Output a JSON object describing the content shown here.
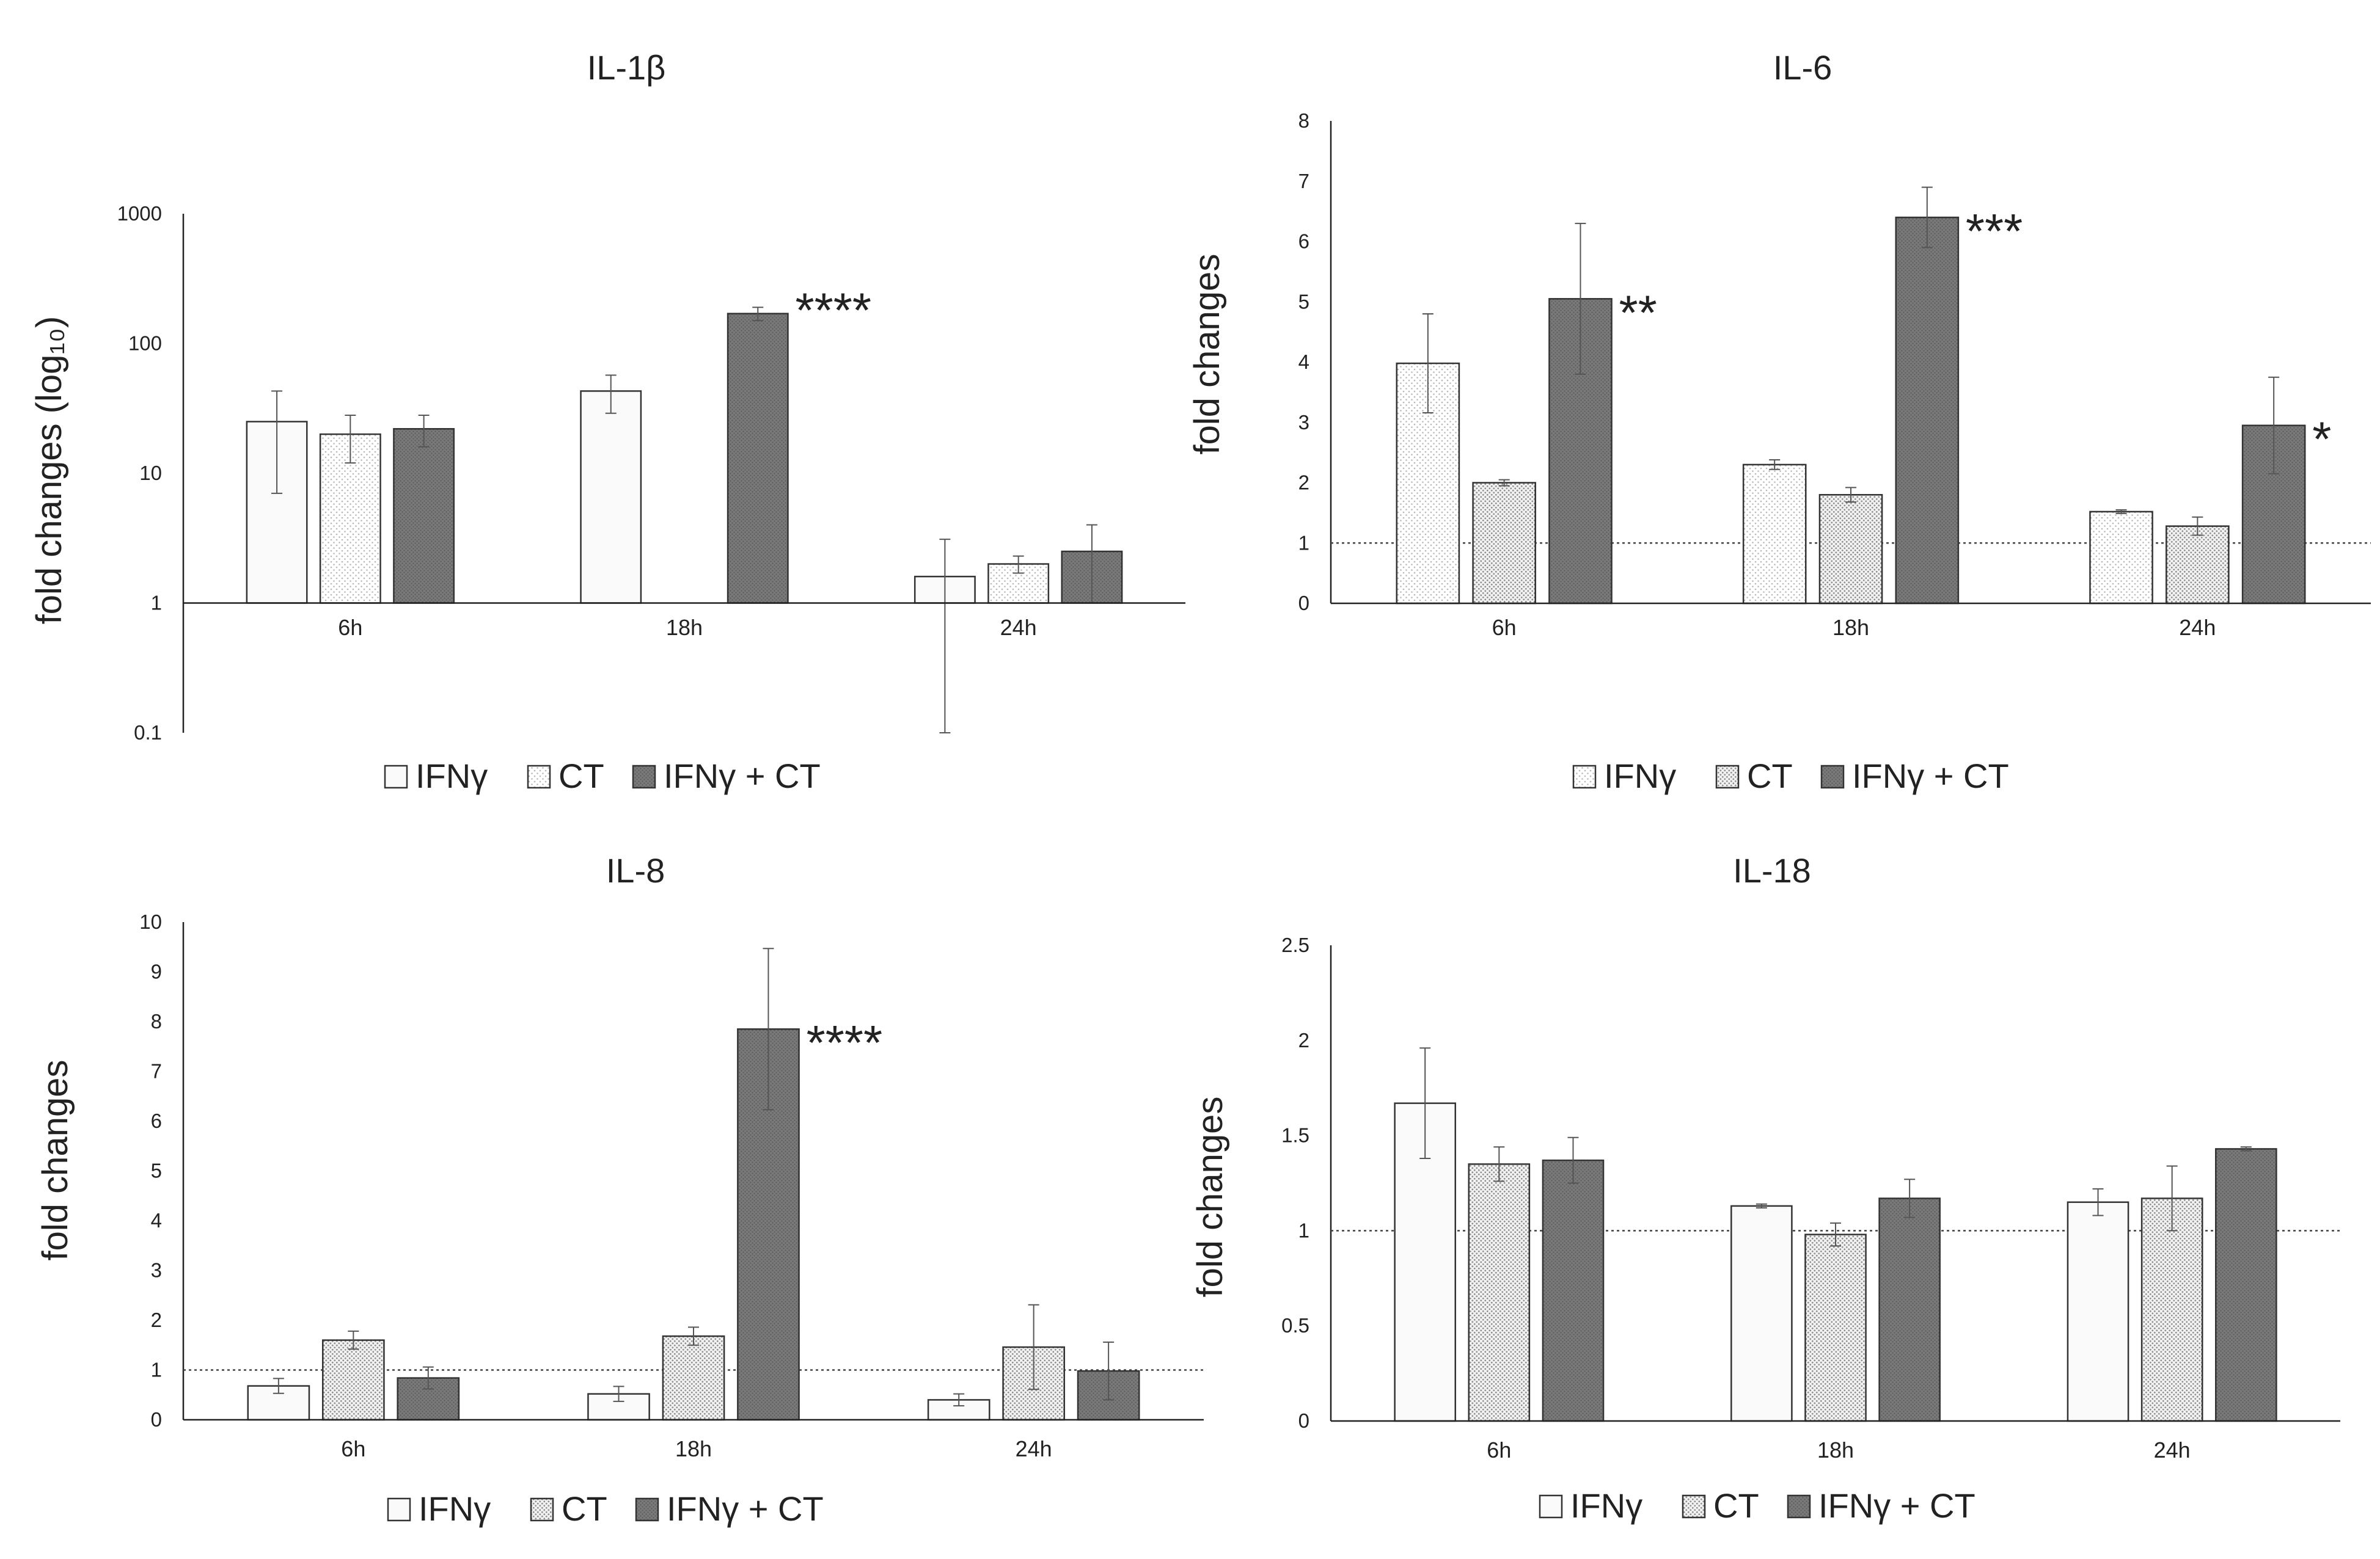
{
  "chart_data": [
    {
      "type": "bar",
      "title": "IL-1β",
      "ylabel": "fold changes (log₁₀)",
      "yscale": "log",
      "ylim": [
        0.1,
        1000
      ],
      "yticks": [
        "0.1",
        "1",
        "10",
        "100",
        "1000"
      ],
      "categories": [
        "6h",
        "18h",
        "24h"
      ],
      "series": [
        {
          "name": "IFNγ",
          "values": [
            25,
            43,
            1.6
          ],
          "errors": [
            18,
            14,
            1.5
          ]
        },
        {
          "name": "CT",
          "values": [
            20,
            null,
            2.0
          ],
          "errors": [
            8,
            null,
            0.3
          ]
        },
        {
          "name": "IFNγ + CT",
          "values": [
            22,
            170,
            2.5
          ],
          "errors": [
            6,
            20,
            1.5
          ]
        }
      ],
      "annotations": [
        {
          "category": "18h",
          "series": 2,
          "text": "****"
        }
      ],
      "reference_line": null,
      "legend_position": "bottom"
    },
    {
      "type": "bar",
      "title": "IL-6",
      "ylabel": "fold changes",
      "yscale": "linear",
      "ylim": [
        0,
        8
      ],
      "yticks": [
        "0",
        "1",
        "2",
        "3",
        "4",
        "5",
        "6",
        "7",
        "8"
      ],
      "categories": [
        "6h",
        "18h",
        "24h"
      ],
      "series": [
        {
          "name": "IFNγ",
          "values": [
            3.98,
            2.3,
            1.52
          ],
          "errors": [
            0.82,
            0.08,
            0.03
          ]
        },
        {
          "name": "CT",
          "values": [
            2.0,
            1.8,
            1.28
          ],
          "errors": [
            0.05,
            0.12,
            0.15
          ]
        },
        {
          "name": "IFNγ + CT",
          "values": [
            5.05,
            6.4,
            2.95
          ],
          "errors": [
            1.25,
            0.5,
            0.8
          ]
        }
      ],
      "annotations": [
        {
          "category": "6h",
          "series": 2,
          "text": "**"
        },
        {
          "category": "18h",
          "series": 2,
          "text": "***"
        },
        {
          "category": "24h",
          "series": 2,
          "text": "*"
        }
      ],
      "reference_line": 1,
      "legend_position": "bottom"
    },
    {
      "type": "bar",
      "title": "IL-8",
      "ylabel": "fold changes",
      "yscale": "linear",
      "ylim": [
        0,
        10
      ],
      "yticks": [
        "0",
        "1",
        "2",
        "3",
        "4",
        "5",
        "6",
        "7",
        "8",
        "9",
        "10"
      ],
      "categories": [
        "6h",
        "18h",
        "24h"
      ],
      "series": [
        {
          "name": "IFNγ",
          "values": [
            0.68,
            0.52,
            0.4
          ],
          "errors": [
            0.15,
            0.15,
            0.12
          ]
        },
        {
          "name": "CT",
          "values": [
            1.6,
            1.68,
            1.46
          ],
          "errors": [
            0.18,
            0.18,
            0.85
          ]
        },
        {
          "name": "IFNγ + CT",
          "values": [
            0.84,
            7.85,
            0.98
          ],
          "errors": [
            0.22,
            1.62,
            0.58
          ]
        }
      ],
      "annotations": [
        {
          "category": "18h",
          "series": 2,
          "text": "****"
        }
      ],
      "reference_line": 1,
      "legend_position": "bottom"
    },
    {
      "type": "bar",
      "title": "IL-18",
      "ylabel": "fold changes",
      "yscale": "linear",
      "ylim": [
        0,
        2.5
      ],
      "yticks": [
        "0",
        "0.5",
        "1",
        "1.5",
        "2",
        "2.5"
      ],
      "categories": [
        "6h",
        "18h",
        "24h"
      ],
      "series": [
        {
          "name": "IFNγ",
          "values": [
            1.67,
            1.13,
            1.15
          ],
          "errors": [
            0.29,
            0.01,
            0.07
          ]
        },
        {
          "name": "CT",
          "values": [
            1.35,
            0.98,
            1.17
          ],
          "errors": [
            0.09,
            0.06,
            0.17
          ]
        },
        {
          "name": "IFNγ + CT",
          "values": [
            1.37,
            1.17,
            1.43
          ],
          "errors": [
            0.12,
            0.1,
            0.01
          ]
        }
      ],
      "annotations": [],
      "reference_line": 1,
      "legend_position": "bottom"
    }
  ],
  "colors": {
    "IFNγ": "#fafafa",
    "CT": "#e4e4e4",
    "IFNγ + CT": "#7c7c7c",
    "axis": "#222222",
    "bar_outline": "#333333"
  }
}
